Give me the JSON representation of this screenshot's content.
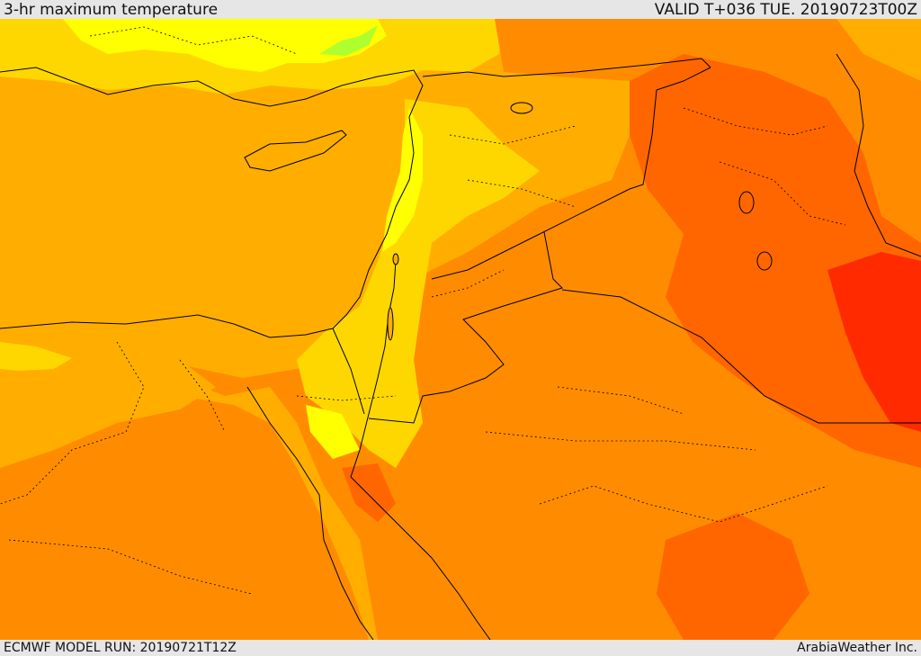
{
  "header": {
    "title": "3-hr maximum temperature",
    "valid": "VALID T+036 TUE. 20190723T00Z"
  },
  "footer": {
    "model_run": "ECMWF MODEL RUN: 20190721T12Z",
    "credit": "ArabiaWeather Inc."
  },
  "colors": {
    "sea": "#ffae00",
    "cool_yellow": "#ffd700",
    "bright_yellow": "#ffff00",
    "green_spot": "#adff2f",
    "warm_orange": "#ff8c00",
    "hot_orange": "#ff6600",
    "hottest_red": "#ff2a00",
    "borders": "#000000"
  }
}
